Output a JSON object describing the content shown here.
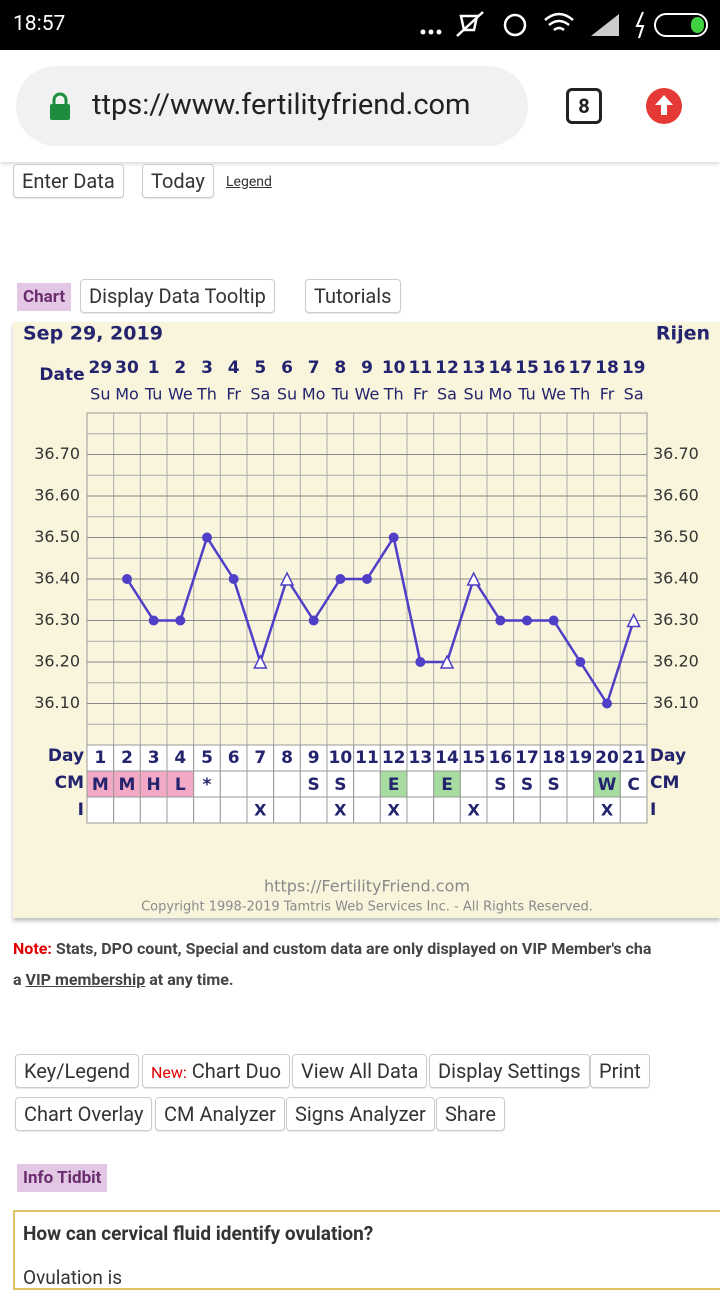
{
  "status_bar": {
    "time": "18:57"
  },
  "browser": {
    "url": "ttps://www.fertilityfriend.com",
    "tabs": "8"
  },
  "toolbar": {
    "buttons": [
      "Enter Data",
      "Today"
    ],
    "link": "Legend"
  },
  "chart_tabs": {
    "label": "Chart",
    "buttons": [
      "Display Data Tooltip",
      "Tutorials"
    ]
  },
  "chart_data": {
    "type": "line",
    "title": "Sep 29, 2019",
    "name": "Rijen",
    "date_label": "Date",
    "categories": [
      "29",
      "30",
      "1",
      "2",
      "3",
      "4",
      "5",
      "6",
      "7",
      "8",
      "9",
      "10",
      "11",
      "12",
      "13",
      "14",
      "15",
      "16",
      "17",
      "18",
      "19"
    ],
    "weekdays": [
      "Su",
      "Mo",
      "Tu",
      "We",
      "Th",
      "Fr",
      "Sa",
      "Su",
      "Mo",
      "Tu",
      "We",
      "Th",
      "Fr",
      "Sa",
      "Su",
      "Mo",
      "Tu",
      "We",
      "Th",
      "Fr",
      "Sa"
    ],
    "values": [
      null,
      36.4,
      36.3,
      36.3,
      36.5,
      36.4,
      36.2,
      36.4,
      36.3,
      36.4,
      36.4,
      36.5,
      36.2,
      36.2,
      36.4,
      36.3,
      36.3,
      36.3,
      36.2,
      36.1,
      36.3
    ],
    "markers": [
      null,
      "dot",
      "dot",
      "dot",
      "dot",
      "dot",
      "triangle",
      "triangle",
      "dot",
      "dot",
      "dot",
      "dot",
      "dot",
      "triangle",
      "triangle",
      "dot",
      "dot",
      "dot",
      "dot",
      "dot",
      "triangle"
    ],
    "color": "#4f3fc6",
    "ylim": [
      36.0,
      36.8
    ],
    "yticks": [
      {
        "value": 36.1,
        "label": "36.10"
      },
      {
        "value": 36.2,
        "label": "36.20"
      },
      {
        "value": 36.3,
        "label": "36.30"
      },
      {
        "value": 36.4,
        "label": "36.40"
      },
      {
        "value": 36.5,
        "label": "36.50"
      },
      {
        "value": 36.6,
        "label": "36.60"
      },
      {
        "value": 36.7,
        "label": "36.70"
      }
    ],
    "grid": true,
    "day_label": "Day",
    "cm_label": "CM",
    "i_label": "I",
    "days": [
      1,
      2,
      3,
      4,
      5,
      6,
      7,
      8,
      9,
      10,
      11,
      12,
      13,
      14,
      15,
      16,
      17,
      18,
      19,
      20,
      21
    ],
    "cm": [
      "M",
      "M",
      "H",
      "L",
      "*",
      null,
      null,
      null,
      "S",
      "S",
      null,
      "E",
      null,
      "E",
      null,
      "S",
      "S",
      "S",
      null,
      "W",
      "C"
    ],
    "cm_colors": {
      "M": "#f2a9c6",
      "H": "#f2a9c6",
      "L": "#f2a9c6",
      "E": "#a6dca0",
      "W": "#a6dca0"
    },
    "intercourse": [
      null,
      null,
      null,
      null,
      null,
      null,
      "X",
      null,
      null,
      "X",
      null,
      "X",
      null,
      null,
      "X",
      null,
      null,
      null,
      null,
      "X",
      null
    ],
    "site": "https://FertilityFriend.com",
    "copyright": "Copyright 1998-2019 Tamtris Web Services Inc. - All Rights Reserved."
  },
  "note": {
    "label": "Note:",
    "text": "Stats, DPO count, Special and custom data are only displayed on VIP Member's cha",
    "prefix": "a",
    "link": "VIP membership",
    "suffix": "at any time."
  },
  "buttons": {
    "row1": [
      "Key/Legend",
      "Chart Duo",
      "View All Data",
      "Display Settings",
      "Print"
    ],
    "new_label": "New:",
    "row2": [
      "Chart Overlay",
      "CM Analyzer",
      "Signs Analyzer",
      "Share"
    ]
  },
  "info": {
    "label": "Info Tidbit",
    "question": "How can cervical fluid identify ovulation?",
    "text": "Ovulation is"
  }
}
